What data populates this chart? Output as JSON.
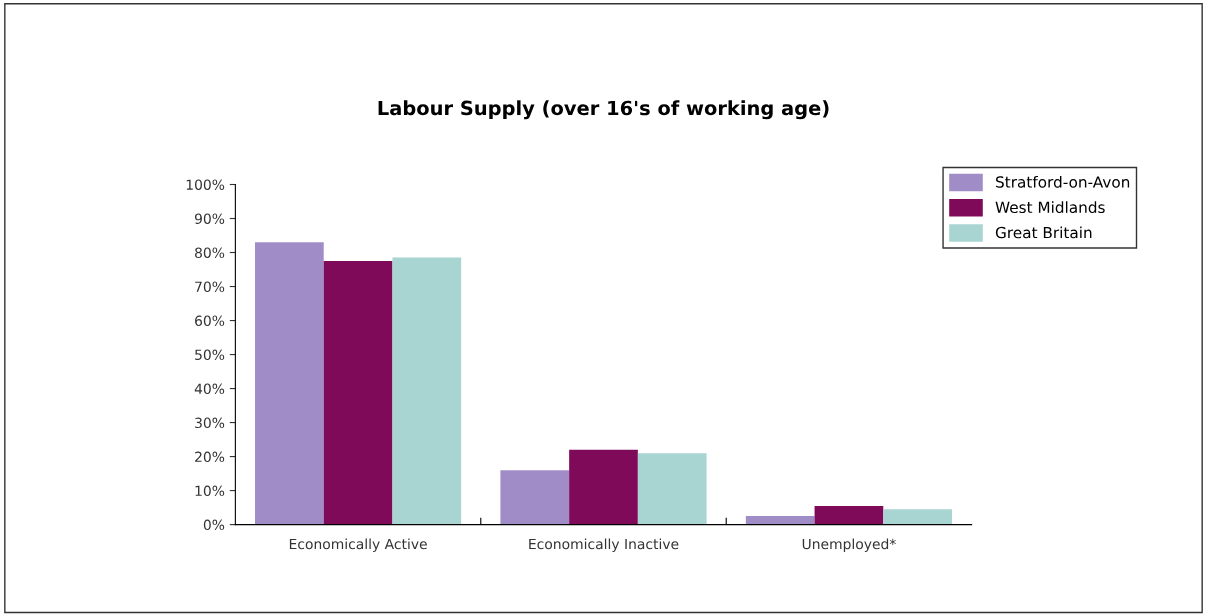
{
  "chart_data": {
    "type": "bar",
    "title": "Labour Supply (over 16's of working age)",
    "categories": [
      "Economically Active",
      "Economically Inactive",
      "Unemployed*"
    ],
    "series": [
      {
        "name": "Stratford-on-Avon",
        "color": "#a08cc6",
        "values": [
          83,
          16,
          2.5
        ]
      },
      {
        "name": "West Midlands",
        "color": "#800a5a",
        "values": [
          77.5,
          22,
          5.5
        ]
      },
      {
        "name": "Great Britain",
        "color": "#a8d4d2",
        "values": [
          78.5,
          21,
          4.5
        ]
      }
    ],
    "ylim": [
      0,
      100
    ],
    "yticks": [
      {
        "value": 0,
        "label": "0%"
      },
      {
        "value": 10,
        "label": "10%"
      },
      {
        "value": 20,
        "label": "20%"
      },
      {
        "value": 30,
        "label": "30%"
      },
      {
        "value": 40,
        "label": "40%"
      },
      {
        "value": 50,
        "label": "50%"
      },
      {
        "value": 60,
        "label": "60%"
      },
      {
        "value": 70,
        "label": "70%"
      },
      {
        "value": 80,
        "label": "80%"
      },
      {
        "value": 90,
        "label": "90%"
      },
      {
        "value": 100,
        "label": "100%"
      }
    ],
    "grid": false,
    "legend": "right"
  }
}
